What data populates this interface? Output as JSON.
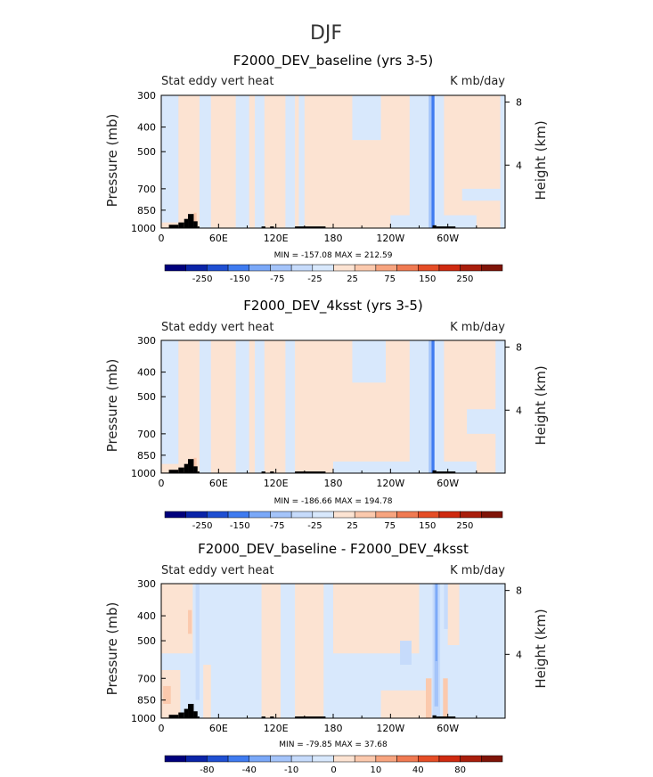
{
  "figure_title": "DJF",
  "chart_data": [
    {
      "type": "heatmap",
      "title": "F2000_DEV_baseline (yrs 3-5)",
      "left_subtitle": "Stat eddy vert heat",
      "right_subtitle": "K mb/day",
      "xlabel": "",
      "ylabel": "Pressure (mb)",
      "ylabel_right": "Height (km)",
      "x_ticks": [
        "0",
        "60E",
        "120E",
        "180",
        "120W",
        "60W"
      ],
      "x_tick_values": [
        0,
        60,
        120,
        180,
        240,
        300
      ],
      "xlim": [
        0,
        360
      ],
      "y_ticks": [
        "300",
        "400",
        "500",
        "700",
        "850",
        "1000"
      ],
      "y_tick_values": [
        300,
        400,
        500,
        700,
        850,
        1000
      ],
      "ylim": [
        1000,
        300
      ],
      "right_ticks": [
        "4",
        "8"
      ],
      "right_tick_values": [
        4,
        8
      ],
      "min_max_label": "MIN = -157.08   MAX = 212.59",
      "min": -157.08,
      "max": 212.59,
      "colorbar_levels": [
        -300,
        -250,
        -200,
        -150,
        -100,
        -75,
        -50,
        -25,
        0,
        25,
        50,
        75,
        100,
        150,
        200,
        250,
        300
      ],
      "colorbar_labels": [
        "-250",
        "-150",
        "-75",
        "-25",
        "25",
        "75",
        "150",
        "250"
      ],
      "features": [
        {
          "kind": "warm",
          "lon": [
            0,
            360
          ],
          "plev": [
            300,
            1000
          ],
          "level": 0.3
        },
        {
          "kind": "cold",
          "lon": [
            0,
            18
          ],
          "plev": [
            300,
            950
          ],
          "level": -0.3
        },
        {
          "kind": "cold",
          "lon": [
            40,
            52
          ],
          "plev": [
            300,
            1000
          ],
          "level": -0.3
        },
        {
          "kind": "cold",
          "lon": [
            78,
            92
          ],
          "plev": [
            300,
            1000
          ],
          "level": -0.3
        },
        {
          "kind": "cold",
          "lon": [
            98,
            108
          ],
          "plev": [
            300,
            1000
          ],
          "level": -0.3
        },
        {
          "kind": "cold",
          "lon": [
            130,
            140
          ],
          "plev": [
            300,
            1000
          ],
          "level": -0.3
        },
        {
          "kind": "cold",
          "lon": [
            144,
            150
          ],
          "plev": [
            300,
            1000
          ],
          "level": -0.3
        },
        {
          "kind": "cold",
          "lon": [
            200,
            230
          ],
          "plev": [
            300,
            450
          ],
          "level": -0.3
        },
        {
          "kind": "cold",
          "lon": [
            260,
            296
          ],
          "plev": [
            300,
            1000
          ],
          "level": -0.3
        },
        {
          "kind": "cold",
          "lon": [
            355,
            360
          ],
          "plev": [
            300,
            1000
          ],
          "level": -0.3
        },
        {
          "kind": "cold",
          "lon": [
            315,
            360
          ],
          "plev": [
            700,
            780
          ],
          "level": -0.3
        },
        {
          "kind": "cold",
          "lon": [
            240,
            330
          ],
          "plev": [
            890,
            1000
          ],
          "level": -0.3
        },
        {
          "kind": "cold",
          "lon": [
            280,
            286
          ],
          "plev": [
            300,
            1000
          ],
          "level": -2.6
        },
        {
          "kind": "cold",
          "lon": [
            283,
            286
          ],
          "plev": [
            300,
            1000
          ],
          "level": -4.5
        },
        {
          "kind": "warm",
          "lon": [
            34,
            37
          ],
          "plev": [
            870,
            1000
          ],
          "level": 1.8
        }
      ],
      "topography": [
        {
          "lon": [
            0,
            8
          ],
          "plev": 995
        },
        {
          "lon": [
            8,
            18
          ],
          "plev": 970
        },
        {
          "lon": [
            18,
            24
          ],
          "plev": 950
        },
        {
          "lon": [
            24,
            28
          ],
          "plev": 920
        },
        {
          "lon": [
            28,
            34
          ],
          "plev": 880
        },
        {
          "lon": [
            34,
            38
          ],
          "plev": 940
        },
        {
          "lon": [
            38,
            40
          ],
          "plev": 985
        },
        {
          "lon": [
            105,
            109
          ],
          "plev": 985
        },
        {
          "lon": [
            114,
            118
          ],
          "plev": 985
        },
        {
          "lon": [
            140,
            172
          ],
          "plev": 985
        },
        {
          "lon": [
            284,
            288
          ],
          "plev": 975
        },
        {
          "lon": [
            288,
            308
          ],
          "plev": 985
        }
      ]
    },
    {
      "type": "heatmap",
      "title": "F2000_DEV_4ksst (yrs 3-5)",
      "left_subtitle": "Stat eddy vert heat",
      "right_subtitle": "K mb/day",
      "xlabel": "",
      "ylabel": "Pressure (mb)",
      "ylabel_right": "Height (km)",
      "x_ticks": [
        "0",
        "60E",
        "120E",
        "180",
        "120W",
        "60W"
      ],
      "x_tick_values": [
        0,
        60,
        120,
        180,
        240,
        300
      ],
      "xlim": [
        0,
        360
      ],
      "y_ticks": [
        "300",
        "400",
        "500",
        "700",
        "850",
        "1000"
      ],
      "y_tick_values": [
        300,
        400,
        500,
        700,
        850,
        1000
      ],
      "ylim": [
        1000,
        300
      ],
      "right_ticks": [
        "4",
        "8"
      ],
      "right_tick_values": [
        4,
        8
      ],
      "min_max_label": "MIN = -186.66   MAX = 194.78",
      "min": -186.66,
      "max": 194.78,
      "colorbar_levels": [
        -300,
        -250,
        -200,
        -150,
        -100,
        -75,
        -50,
        -25,
        0,
        25,
        50,
        75,
        100,
        150,
        200,
        250,
        300
      ],
      "colorbar_labels": [
        "-250",
        "-150",
        "-75",
        "-25",
        "25",
        "75",
        "150",
        "250"
      ],
      "features": [
        {
          "kind": "warm",
          "lon": [
            0,
            360
          ],
          "plev": [
            300,
            1000
          ],
          "level": 0.3
        },
        {
          "kind": "cold",
          "lon": [
            0,
            18
          ],
          "plev": [
            300,
            920
          ],
          "level": -0.3
        },
        {
          "kind": "cold",
          "lon": [
            40,
            52
          ],
          "plev": [
            300,
            1000
          ],
          "level": -0.3
        },
        {
          "kind": "cold",
          "lon": [
            78,
            92
          ],
          "plev": [
            300,
            1000
          ],
          "level": -0.3
        },
        {
          "kind": "cold",
          "lon": [
            98,
            108
          ],
          "plev": [
            300,
            1000
          ],
          "level": -0.3
        },
        {
          "kind": "cold",
          "lon": [
            130,
            140
          ],
          "plev": [
            300,
            1000
          ],
          "level": -0.3
        },
        {
          "kind": "cold",
          "lon": [
            200,
            235
          ],
          "plev": [
            300,
            440
          ],
          "level": -0.3
        },
        {
          "kind": "cold",
          "lon": [
            260,
            296
          ],
          "plev": [
            300,
            1000
          ],
          "level": -0.3
        },
        {
          "kind": "cold",
          "lon": [
            350,
            360
          ],
          "plev": [
            300,
            1000
          ],
          "level": -0.3
        },
        {
          "kind": "cold",
          "lon": [
            320,
            360
          ],
          "plev": [
            560,
            700
          ],
          "level": -0.3
        },
        {
          "kind": "cold",
          "lon": [
            180,
            330
          ],
          "plev": [
            900,
            1000
          ],
          "level": -0.3
        },
        {
          "kind": "cold",
          "lon": [
            280,
            286
          ],
          "plev": [
            300,
            1000
          ],
          "level": -2.6
        },
        {
          "kind": "cold",
          "lon": [
            283,
            286
          ],
          "plev": [
            300,
            1000
          ],
          "level": -4.5
        },
        {
          "kind": "warm",
          "lon": [
            34,
            37
          ],
          "plev": [
            870,
            1000
          ],
          "level": 1.8
        }
      ],
      "topography": [
        {
          "lon": [
            0,
            8
          ],
          "plev": 995
        },
        {
          "lon": [
            8,
            18
          ],
          "plev": 970
        },
        {
          "lon": [
            18,
            24
          ],
          "plev": 950
        },
        {
          "lon": [
            24,
            28
          ],
          "plev": 920
        },
        {
          "lon": [
            28,
            34
          ],
          "plev": 880
        },
        {
          "lon": [
            34,
            38
          ],
          "plev": 940
        },
        {
          "lon": [
            38,
            40
          ],
          "plev": 985
        },
        {
          "lon": [
            105,
            109
          ],
          "plev": 985
        },
        {
          "lon": [
            114,
            118
          ],
          "plev": 985
        },
        {
          "lon": [
            140,
            172
          ],
          "plev": 985
        },
        {
          "lon": [
            284,
            288
          ],
          "plev": 975
        },
        {
          "lon": [
            288,
            308
          ],
          "plev": 985
        }
      ]
    },
    {
      "type": "heatmap",
      "title": "F2000_DEV_baseline - F2000_DEV_4ksst",
      "left_subtitle": "Stat eddy vert heat",
      "right_subtitle": "K mb/day",
      "xlabel": "",
      "ylabel": "Pressure (mb)",
      "ylabel_right": "Height (km)",
      "x_ticks": [
        "0",
        "60E",
        "120E",
        "180",
        "120W",
        "60W"
      ],
      "x_tick_values": [
        0,
        60,
        120,
        180,
        240,
        300
      ],
      "xlim": [
        0,
        360
      ],
      "y_ticks": [
        "300",
        "400",
        "500",
        "700",
        "850",
        "1000"
      ],
      "y_tick_values": [
        300,
        400,
        500,
        700,
        850,
        1000
      ],
      "ylim": [
        1000,
        300
      ],
      "right_ticks": [
        "4",
        "8"
      ],
      "right_tick_values": [
        4,
        8
      ],
      "min_max_label": "MIN = -79.85   MAX = 37.68",
      "min": -79.85,
      "max": 37.68,
      "colorbar_levels": [
        -100,
        -80,
        -60,
        -40,
        -20,
        -10,
        -5,
        0,
        0,
        5,
        10,
        20,
        40,
        60,
        80,
        100
      ],
      "colorbar_labels": [
        "-80",
        "-40",
        "-10",
        "0",
        "10",
        "40",
        "80"
      ],
      "features": [
        {
          "kind": "cold",
          "lon": [
            0,
            360
          ],
          "plev": [
            300,
            1000
          ],
          "level": -0.3
        },
        {
          "kind": "warm",
          "lon": [
            0,
            28
          ],
          "plev": [
            300,
            560
          ],
          "level": 0.3
        },
        {
          "kind": "warm",
          "lon": [
            180,
            270
          ],
          "plev": [
            300,
            560
          ],
          "level": 0.3
        },
        {
          "kind": "warm",
          "lon": [
            140,
            170
          ],
          "plev": [
            300,
            1000
          ],
          "level": 0.3
        },
        {
          "kind": "warm",
          "lon": [
            230,
            280
          ],
          "plev": [
            780,
            1000
          ],
          "level": 0.3
        },
        {
          "kind": "warm",
          "lon": [
            0,
            20
          ],
          "plev": [
            650,
            1000
          ],
          "level": 0.3
        },
        {
          "kind": "warm",
          "lon": [
            105,
            125
          ],
          "plev": [
            300,
            1000
          ],
          "level": 0.3
        },
        {
          "kind": "warm",
          "lon": [
            44,
            52
          ],
          "plev": [
            620,
            1000
          ],
          "level": 0.3
        },
        {
          "kind": "warm",
          "lon": [
            300,
            312
          ],
          "plev": [
            300,
            520
          ],
          "level": 0.3
        },
        {
          "kind": "warm",
          "lon": [
            28,
            33
          ],
          "plev": [
            300,
            560
          ],
          "level": 0.3
        },
        {
          "kind": "warm",
          "lon": [
            28,
            32
          ],
          "plev": [
            380,
            470
          ],
          "level": 1.3
        },
        {
          "kind": "warm",
          "lon": [
            2,
            10
          ],
          "plev": [
            750,
            880
          ],
          "level": 1.3
        },
        {
          "kind": "warm",
          "lon": [
            277,
            283
          ],
          "plev": [
            700,
            1000
          ],
          "level": 1.3
        },
        {
          "kind": "warm",
          "lon": [
            295,
            300
          ],
          "plev": [
            700,
            1000
          ],
          "level": 1.3
        },
        {
          "kind": "cold",
          "lon": [
            284,
            292
          ],
          "plev": [
            300,
            1000
          ],
          "level": -1.4
        },
        {
          "kind": "cold",
          "lon": [
            286,
            290
          ],
          "plev": [
            300,
            900
          ],
          "level": -2.6
        },
        {
          "kind": "cold",
          "lon": [
            287,
            289
          ],
          "plev": [
            300,
            600
          ],
          "level": -3.5
        },
        {
          "kind": "cold",
          "lon": [
            296,
            300
          ],
          "plev": [
            300,
            450
          ],
          "level": -1.4
        },
        {
          "kind": "cold",
          "lon": [
            250,
            262
          ],
          "plev": [
            500,
            620
          ],
          "level": -1.4
        },
        {
          "kind": "cold",
          "lon": [
            36,
            40
          ],
          "plev": [
            300,
            850
          ],
          "level": -1.4
        }
      ],
      "topography": [
        {
          "lon": [
            0,
            8
          ],
          "plev": 995
        },
        {
          "lon": [
            8,
            18
          ],
          "plev": 970
        },
        {
          "lon": [
            18,
            24
          ],
          "plev": 950
        },
        {
          "lon": [
            24,
            28
          ],
          "plev": 920
        },
        {
          "lon": [
            28,
            34
          ],
          "plev": 880
        },
        {
          "lon": [
            34,
            38
          ],
          "plev": 940
        },
        {
          "lon": [
            38,
            40
          ],
          "plev": 985
        },
        {
          "lon": [
            105,
            109
          ],
          "plev": 985
        },
        {
          "lon": [
            114,
            118
          ],
          "plev": 985
        },
        {
          "lon": [
            140,
            172
          ],
          "plev": 985
        },
        {
          "lon": [
            284,
            288
          ],
          "plev": 975
        },
        {
          "lon": [
            288,
            308
          ],
          "plev": 985
        }
      ]
    }
  ],
  "colorbar_colors": [
    "#00007c",
    "#0a24a8",
    "#1f4fd2",
    "#3f7bf0",
    "#7aa8f8",
    "#a4c4fa",
    "#c6dbfb",
    "#d8e8fc",
    "#fce3d2",
    "#fbc9ad",
    "#f7a47f",
    "#f07a52",
    "#e54d26",
    "#cf2a10",
    "#a91e0c",
    "#7f1408"
  ],
  "land_color": "#000000"
}
